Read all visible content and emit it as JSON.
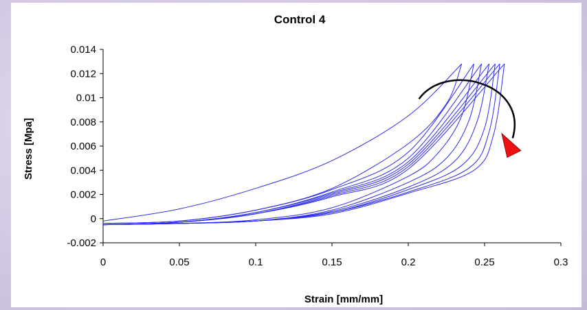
{
  "chart_data": {
    "type": "line",
    "title": "Control 4",
    "xlabel": "Strain [mm/mm]",
    "ylabel": "Stress [Mpa]",
    "xlim": [
      0,
      0.3
    ],
    "ylim": [
      -0.002,
      0.014
    ],
    "x_ticks": [
      "0",
      "0.05",
      "0.1",
      "0.15",
      "0.2",
      "0.25",
      "0.3"
    ],
    "y_ticks": [
      "0.014",
      "0.012",
      "0.01",
      "0.008",
      "0.006",
      "0.004",
      "0.002",
      "0",
      "-0.002"
    ],
    "x_tick_values": [
      0,
      0.05,
      0.1,
      0.15,
      0.2,
      0.25,
      0.3
    ],
    "y_tick_values": [
      0.014,
      0.012,
      0.01,
      0.008,
      0.006,
      0.004,
      0.002,
      0,
      -0.002
    ],
    "grid": false,
    "legend": "none",
    "line_color": "#2a2af0",
    "series": [
      {
        "x": [
          0,
          0.05,
          0.1,
          0.15,
          0.2,
          0.235
        ],
        "y": [
          -0.0002,
          0.0008,
          0.0025,
          0.0048,
          0.0085,
          0.0128
        ]
      },
      {
        "x": [
          0.235,
          0.225,
          0.2,
          0.15,
          0.1,
          0.05,
          0
        ],
        "y": [
          0.0128,
          0.0095,
          0.0062,
          0.0025,
          0.0007,
          -0.0002,
          -0.0004
        ]
      },
      {
        "x": [
          0,
          0.05,
          0.1,
          0.15,
          0.2,
          0.243
        ],
        "y": [
          -0.0004,
          -0.0002,
          0.0007,
          0.0024,
          0.0055,
          0.0128
        ]
      },
      {
        "x": [
          0.243,
          0.235,
          0.22,
          0.2,
          0.15,
          0.1,
          0.05,
          0
        ],
        "y": [
          0.0128,
          0.0085,
          0.0055,
          0.0035,
          0.0009,
          -0.0001,
          -0.0004,
          -0.0005
        ]
      },
      {
        "x": [
          0,
          0.05,
          0.1,
          0.15,
          0.2,
          0.248
        ],
        "y": [
          -0.0005,
          -0.0003,
          0.0005,
          0.0022,
          0.005,
          0.0128
        ]
      },
      {
        "x": [
          0.248,
          0.24,
          0.225,
          0.2,
          0.15,
          0.1,
          0.05,
          0
        ],
        "y": [
          0.0128,
          0.0082,
          0.005,
          0.003,
          0.0007,
          -0.0002,
          -0.0004,
          -0.0005
        ]
      },
      {
        "x": [
          0,
          0.05,
          0.1,
          0.15,
          0.2,
          0.253
        ],
        "y": [
          -0.0005,
          -0.0003,
          0.0005,
          0.0021,
          0.0047,
          0.0128
        ]
      },
      {
        "x": [
          0.253,
          0.245,
          0.23,
          0.2,
          0.15,
          0.1,
          0.05,
          0
        ],
        "y": [
          0.0128,
          0.008,
          0.0047,
          0.0026,
          0.0006,
          -0.0002,
          -0.0004,
          -0.0005
        ]
      },
      {
        "x": [
          0,
          0.05,
          0.1,
          0.15,
          0.2,
          0.257
        ],
        "y": [
          -0.0005,
          -0.0003,
          0.0004,
          0.002,
          0.0045,
          0.0128
        ]
      },
      {
        "x": [
          0.257,
          0.25,
          0.235,
          0.2,
          0.15,
          0.1,
          0.05,
          0
        ],
        "y": [
          0.0128,
          0.0075,
          0.0044,
          0.0024,
          0.0005,
          -0.0002,
          -0.0004,
          -0.0005
        ]
      },
      {
        "x": [
          0,
          0.05,
          0.1,
          0.15,
          0.2,
          0.26
        ],
        "y": [
          -0.0005,
          -0.0003,
          0.0004,
          0.0019,
          0.0043,
          0.0128
        ]
      },
      {
        "x": [
          0.26,
          0.253,
          0.24,
          0.2,
          0.15,
          0.1,
          0.05,
          0
        ],
        "y": [
          0.0128,
          0.0072,
          0.0042,
          0.0022,
          0.0005,
          -0.0002,
          -0.0004,
          -0.0005
        ]
      },
      {
        "x": [
          0,
          0.05,
          0.1,
          0.15,
          0.2,
          0.263
        ],
        "y": [
          -0.0005,
          -0.0003,
          0.0004,
          0.0018,
          0.0041,
          0.0128
        ]
      },
      {
        "x": [
          0.263,
          0.256,
          0.243,
          0.2,
          0.15,
          0.1,
          0.05,
          0
        ],
        "y": [
          0.0128,
          0.007,
          0.004,
          0.0021,
          0.0004,
          -0.0002,
          -0.0004,
          -0.0005
        ]
      }
    ],
    "annotation": {
      "arrow_from": [
        0.207,
        0.0099
      ],
      "arrow_to": [
        0.272,
        0.0058
      ],
      "arrow_color": "#000000",
      "arrowhead_color": "#ee1111"
    }
  }
}
